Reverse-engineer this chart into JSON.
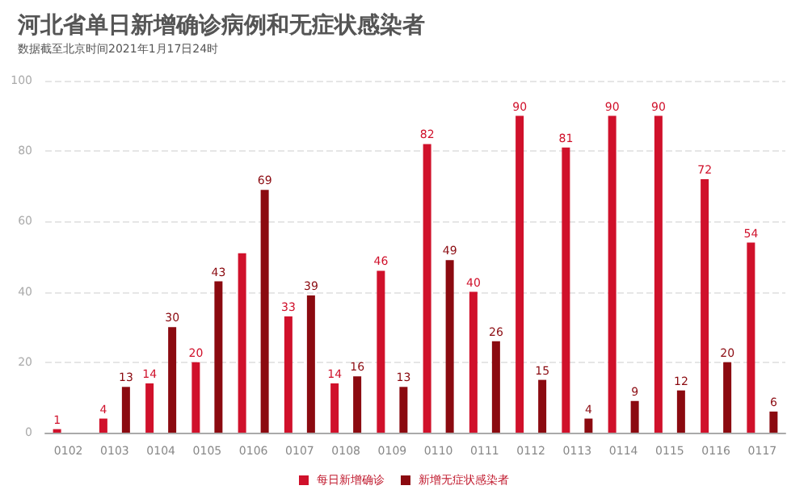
{
  "chart_data": {
    "type": "bar",
    "title": "河北省单日新增确诊病例和无症状感染者",
    "subtitle": "数据截至北京时间2021年1月17日24时",
    "categories": [
      "0102",
      "0103",
      "0104",
      "0105",
      "0106",
      "0107",
      "0108",
      "0109",
      "0110",
      "0111",
      "0112",
      "0113",
      "0114",
      "0115",
      "0116",
      "0117"
    ],
    "series": [
      {
        "name": "每日新增确诊",
        "color": "#d0112b",
        "values": [
          1,
          4,
          14,
          20,
          51,
          33,
          14,
          46,
          82,
          40,
          90,
          81,
          90,
          90,
          72,
          54
        ],
        "value_labels": [
          "1",
          "4",
          "14",
          "20",
          null,
          "33",
          "14",
          "46",
          "82",
          "40",
          "90",
          "81",
          "90",
          "90",
          "72",
          "54"
        ]
      },
      {
        "name": "新增无症状感染者",
        "color": "#8b0a10",
        "values": [
          null,
          13,
          30,
          43,
          69,
          39,
          16,
          13,
          49,
          26,
          15,
          4,
          9,
          12,
          20,
          6
        ],
        "value_labels": [
          null,
          "13",
          "30",
          "43",
          "69",
          "39",
          "16",
          "13",
          "49",
          "26",
          "15",
          "4",
          "9",
          "12",
          "20",
          "6"
        ]
      }
    ],
    "ylim": [
      0,
      100
    ],
    "yticks": [
      0,
      20,
      40,
      60,
      80,
      100
    ],
    "grid": "y",
    "legend": "bottom"
  }
}
